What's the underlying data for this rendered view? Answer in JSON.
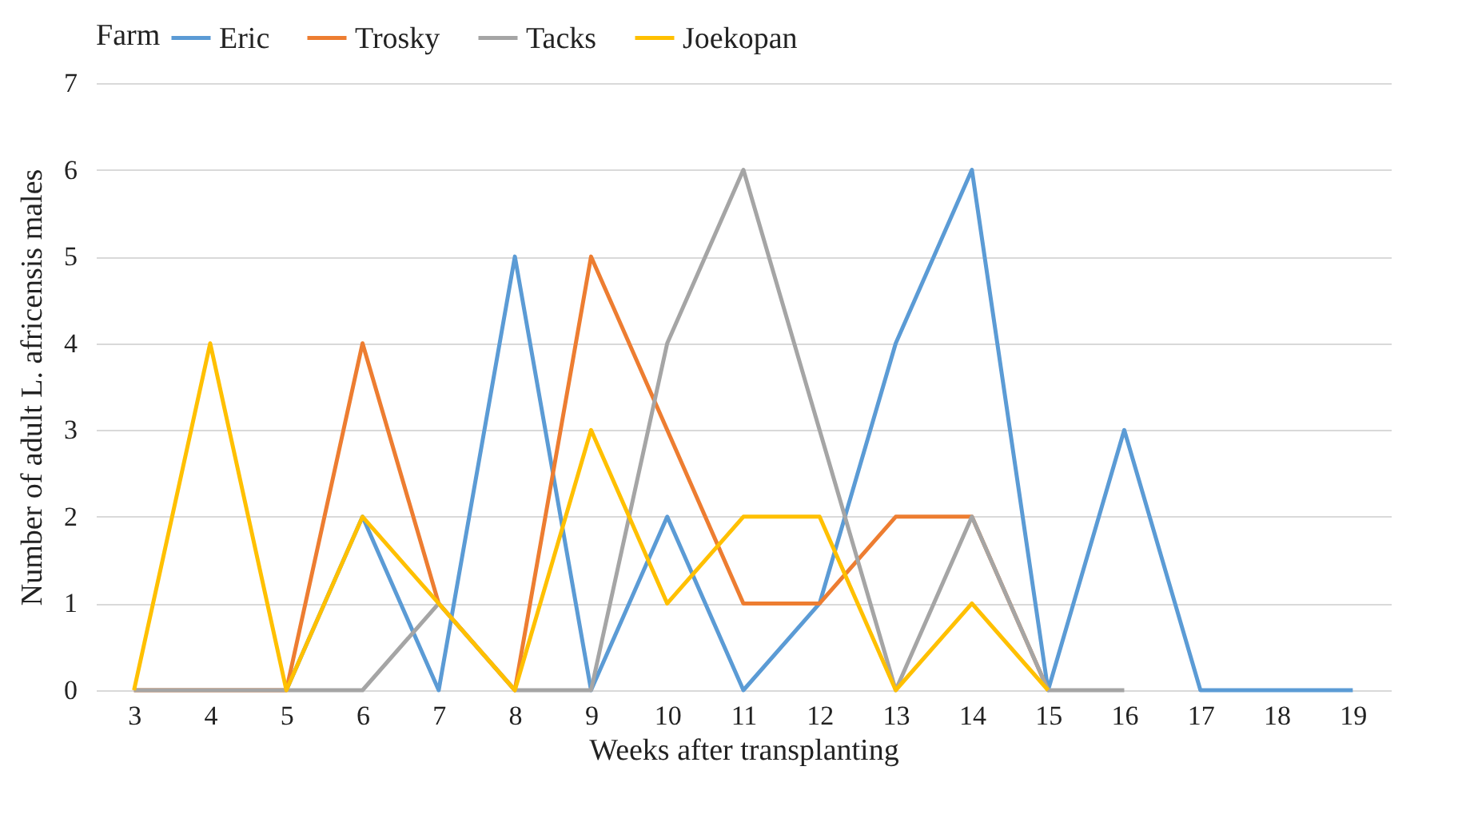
{
  "chart_data": {
    "type": "line",
    "xlabel": "Weeks after transplanting",
    "ylabel": "Number of adult L. africensis males",
    "legend_title": "Farm",
    "legend": "top",
    "grid": "y",
    "marker": "none",
    "line_style": "solid",
    "categories": [
      "3",
      "4",
      "5",
      "6",
      "7",
      "8",
      "9",
      "10",
      "11",
      "12",
      "13",
      "14",
      "15",
      "16",
      "17",
      "18",
      "19"
    ],
    "ylim": [
      0,
      7
    ],
    "yticks": [
      0,
      1,
      2,
      3,
      4,
      5,
      6,
      7
    ],
    "series": [
      {
        "name": "Eric",
        "color": "#5b9bd5",
        "values": [
          null,
          null,
          0,
          2,
          0,
          5,
          0,
          2,
          0,
          1,
          4,
          6,
          0,
          3,
          0,
          0,
          0
        ]
      },
      {
        "name": "Trosky",
        "color": "#ed7d31",
        "values": [
          0,
          0,
          0,
          4,
          1,
          0,
          5,
          3,
          1,
          1,
          2,
          2,
          0,
          null,
          null,
          null,
          null
        ]
      },
      {
        "name": "Tacks",
        "color": "#a5a5a5",
        "values": [
          0,
          0,
          0,
          0,
          1,
          0,
          0,
          4,
          6,
          3,
          0,
          2,
          0,
          0,
          null,
          null,
          null
        ]
      },
      {
        "name": "Joekopan",
        "color": "#ffc000",
        "values": [
          0,
          4,
          0,
          2,
          1,
          0,
          3,
          1,
          2,
          2,
          0,
          1,
          0,
          null,
          null,
          null,
          null
        ]
      }
    ]
  }
}
